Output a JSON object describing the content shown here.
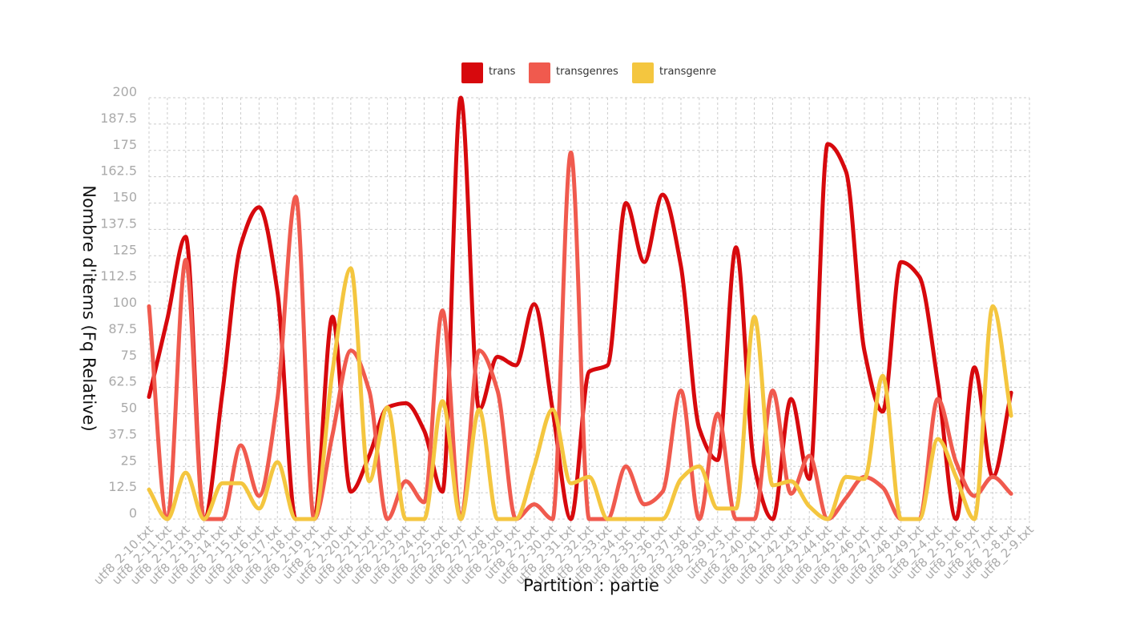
{
  "chart_data": {
    "type": "line",
    "title": "",
    "xlabel": "Partition : partie",
    "ylabel": "Nombre d'items (Fq Relative)",
    "ylim": [
      0,
      200
    ],
    "yticks": [
      "0",
      "12.5",
      "25",
      "37.5",
      "50",
      "62.5",
      "75",
      "87.5",
      "100",
      "112.5",
      "125",
      "137.5",
      "150",
      "162.5",
      "175",
      "187.5",
      "200"
    ],
    "grid": true,
    "legend_position": "top",
    "categories": [
      "utf8_2-10.txt",
      "utf8_2-11.txt",
      "utf8_2-12.txt",
      "utf8_2-13.txt",
      "utf8_2-14.txt",
      "utf8_2-15.txt",
      "utf8_2-16.txt",
      "utf8_2-17.txt",
      "utf8_2-18.txt",
      "utf8_2-19.txt",
      "utf8_2-1.txt",
      "utf8_2-20.txt",
      "utf8_2-21.txt",
      "utf8_2-22.txt",
      "utf8_2-23.txt",
      "utf8_2-24.txt",
      "utf8_2-25.txt",
      "utf8_2-26.txt",
      "utf8_2-27.txt",
      "utf8_2-28.txt",
      "utf8_2-29.txt",
      "utf8_2-2.txt",
      "utf8_2-30.txt",
      "utf8_2-31.txt",
      "utf8_2-32.txt",
      "utf8_2-33.txt",
      "utf8_2-34.txt",
      "utf8_2-35.txt",
      "utf8_2-36.txt",
      "utf8_2-37.txt",
      "utf8_2-38.txt",
      "utf8_2-39.txt",
      "utf8_2-3.txt",
      "utf8_2-40.txt",
      "utf8_2-41.txt",
      "utf8_2-42.txt",
      "utf8_2-43.txt",
      "utf8_2-44.txt",
      "utf8_2-45.txt",
      "utf8_2-46.txt",
      "utf8_2-47.txt",
      "utf8_2-48.txt",
      "utf8_2-49.txt",
      "utf8_2-4.txt",
      "utf8_2-5.txt",
      "utf8_2-6.txt",
      "utf8_2-7.txt",
      "utf8_2-8.txt",
      "utf8_2-9.txt"
    ],
    "series": [
      {
        "name": "trans",
        "color": "#d7090d",
        "values": [
          58,
          95,
          134,
          0,
          60,
          130,
          148,
          108,
          0,
          0,
          96,
          13,
          30,
          53,
          55,
          42,
          13,
          200,
          52,
          77,
          73,
          102,
          52,
          0,
          70,
          73,
          150,
          122,
          154,
          120,
          43,
          28,
          129,
          25,
          0,
          57,
          19,
          178,
          165,
          80,
          51,
          122,
          115,
          65,
          0,
          72,
          20,
          60,
          null
        ]
      },
      {
        "name": "transgenres",
        "color": "#f05a4e",
        "values": [
          101,
          0,
          123,
          0,
          0,
          35,
          11,
          57,
          153,
          0,
          40,
          80,
          61,
          0,
          18,
          8,
          99,
          0,
          80,
          61,
          0,
          7,
          0,
          174,
          0,
          0,
          25,
          7,
          13,
          61,
          0,
          50,
          0,
          0,
          61,
          12,
          30,
          0,
          10,
          20,
          15,
          0,
          0,
          57,
          27,
          11,
          20,
          12,
          null
        ]
      },
      {
        "name": "transgenre",
        "color": "#f4c63f",
        "values": [
          14,
          0,
          22,
          0,
          17,
          17,
          5,
          27,
          0,
          0,
          70,
          119,
          18,
          53,
          0,
          0,
          56,
          0,
          52,
          0,
          0,
          25,
          52,
          17,
          20,
          0,
          0,
          0,
          0,
          19,
          25,
          5,
          5,
          96,
          16,
          18,
          6,
          0,
          20,
          19,
          68,
          0,
          0,
          38,
          20,
          0,
          101,
          49,
          null
        ]
      }
    ]
  }
}
